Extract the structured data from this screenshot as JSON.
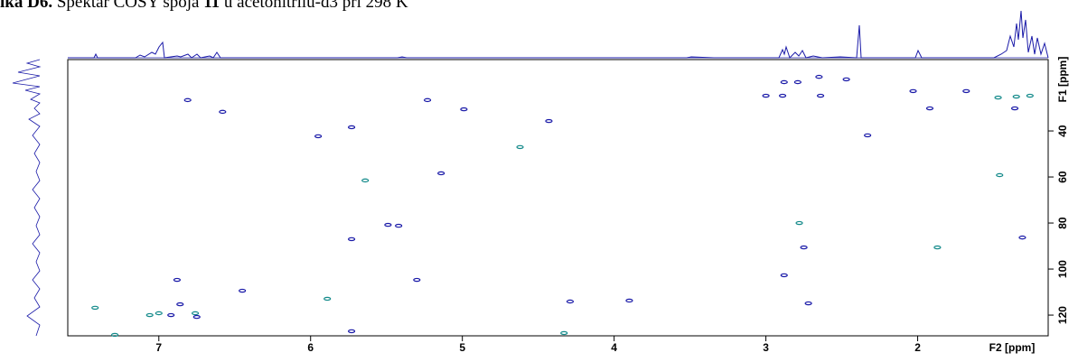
{
  "chart_data": {
    "type": "scatter",
    "title_label": "ika D6.",
    "title": "Spektar COSY spoja",
    "compound": "11",
    "title_rest": "u acetonitrilu-d3 pri 298 K",
    "x_label": "F2 [ppm]",
    "y_label": "F1 [ppm]",
    "xlim": [
      7.6,
      1.14
    ],
    "ylim": [
      9,
      129
    ],
    "xticks": [
      7,
      6,
      5,
      4,
      3,
      2
    ],
    "yticks": [
      40,
      60,
      80,
      100,
      120
    ],
    "series": [
      {
        "color": "#138a8a",
        "x": [
          7.42,
          7.29,
          7.06,
          7.0,
          6.76,
          1.87,
          4.62,
          5.64,
          4.33,
          2.78,
          1.35,
          1.47,
          1.26,
          1.46,
          5.89
        ],
        "values": [
          116.8,
          128.6,
          120.0,
          119.2,
          119.2,
          90.6,
          47.0,
          61.5,
          127.8,
          80.0,
          25.1,
          25.5,
          24.7,
          59.2,
          112.9
        ]
      },
      {
        "color": "#1a1aa8",
        "x": [
          6.92,
          6.75,
          6.81,
          6.58,
          5.95,
          5.73,
          5.49,
          5.42,
          5.73,
          4.99,
          5.14,
          4.43,
          5.23,
          3.9,
          2.75,
          2.89,
          2.64,
          3.0,
          2.79,
          2.65,
          2.88,
          2.47,
          2.33,
          2.03,
          1.92,
          1.36,
          1.68,
          1.31,
          6.45,
          6.88,
          6.86,
          5.3,
          2.72,
          2.88,
          5.73,
          4.29
        ],
        "values": [
          120.0,
          120.8,
          26.6,
          31.7,
          42.3,
          38.4,
          80.8,
          81.2,
          87.0,
          30.6,
          58.4,
          35.7,
          26.6,
          113.7,
          90.6,
          24.7,
          24.7,
          24.7,
          18.8,
          16.5,
          18.8,
          17.6,
          41.9,
          22.7,
          30.2,
          30.2,
          22.7,
          86.3,
          109.4,
          104.7,
          115.3,
          104.7,
          114.9,
          102.7,
          127.0,
          114.1
        ]
      }
    ]
  }
}
